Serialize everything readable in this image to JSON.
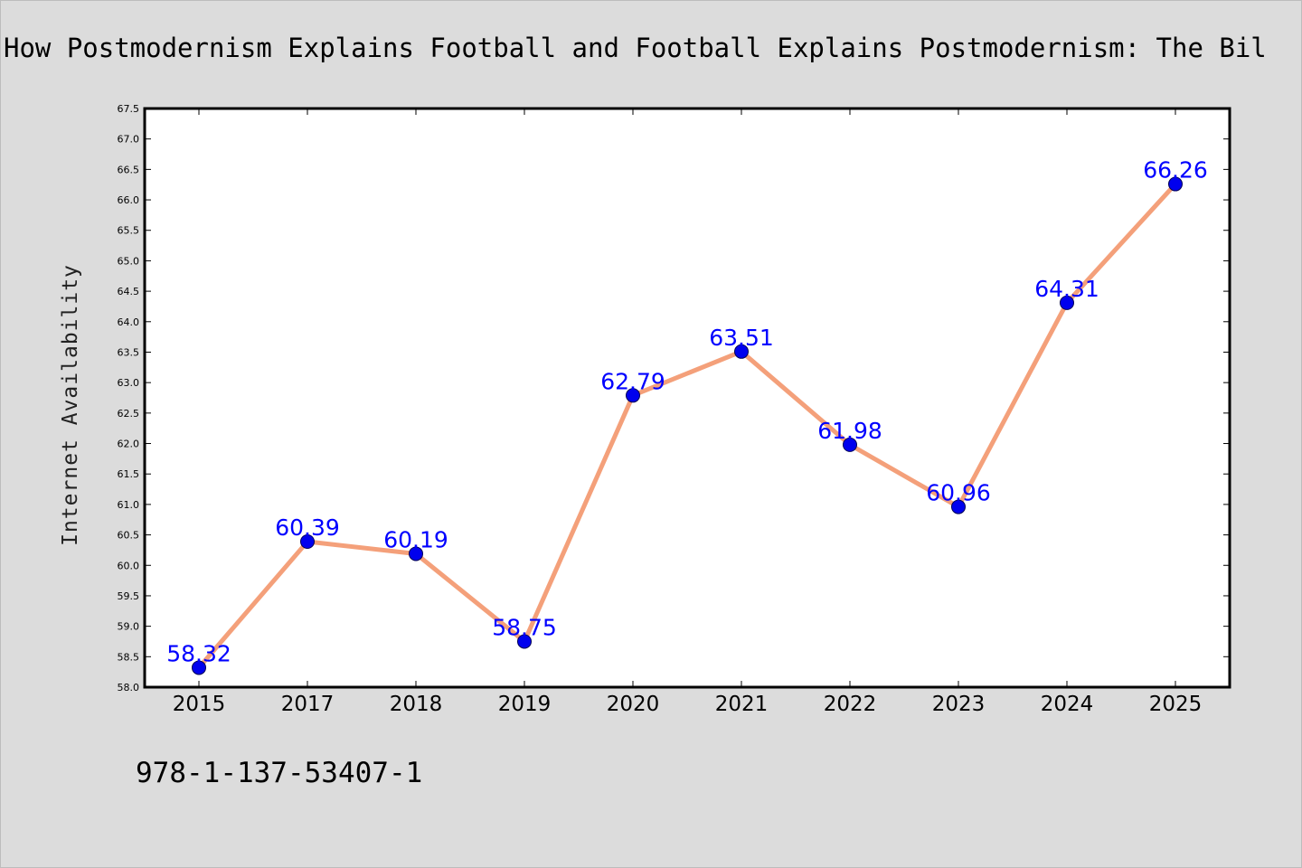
{
  "chart_data": {
    "type": "line",
    "title": "How Postmodernism Explains Football and Football Explains Postmodernism: The Bil",
    "xlabel": "",
    "ylabel": "Internet Availability",
    "categories": [
      "2015",
      "2017",
      "2018",
      "2019",
      "2020",
      "2021",
      "2022",
      "2023",
      "2024",
      "2025"
    ],
    "series": [
      {
        "values": [
          58.32,
          60.39,
          60.19,
          58.75,
          62.79,
          63.51,
          61.98,
          60.96,
          64.31,
          66.26
        ],
        "data_labels": [
          "58.32",
          "60.39",
          "60.19",
          "58.75",
          "62.79",
          "63.51",
          "61.98",
          "60.96",
          "64.31",
          "66.26"
        ]
      }
    ],
    "ylim": [
      58.0,
      67.5
    ],
    "yticks": [
      "58.0",
      "58.5",
      "59.0",
      "59.5",
      "60.0",
      "60.5",
      "61.0",
      "61.5",
      "62.0",
      "62.5",
      "63.0",
      "63.5",
      "64.0",
      "64.5",
      "65.0",
      "65.5",
      "66.0",
      "66.5",
      "67.0",
      "67.5"
    ],
    "grid": false,
    "legend": "none",
    "colors": {
      "line": "#f4a07a",
      "marker": "#0000ee",
      "data_label": "#0000ff",
      "background": "#dcdcdc",
      "plot_background": "#ffffff"
    }
  },
  "footer": {
    "isbn": "978-1-137-53407-1"
  }
}
